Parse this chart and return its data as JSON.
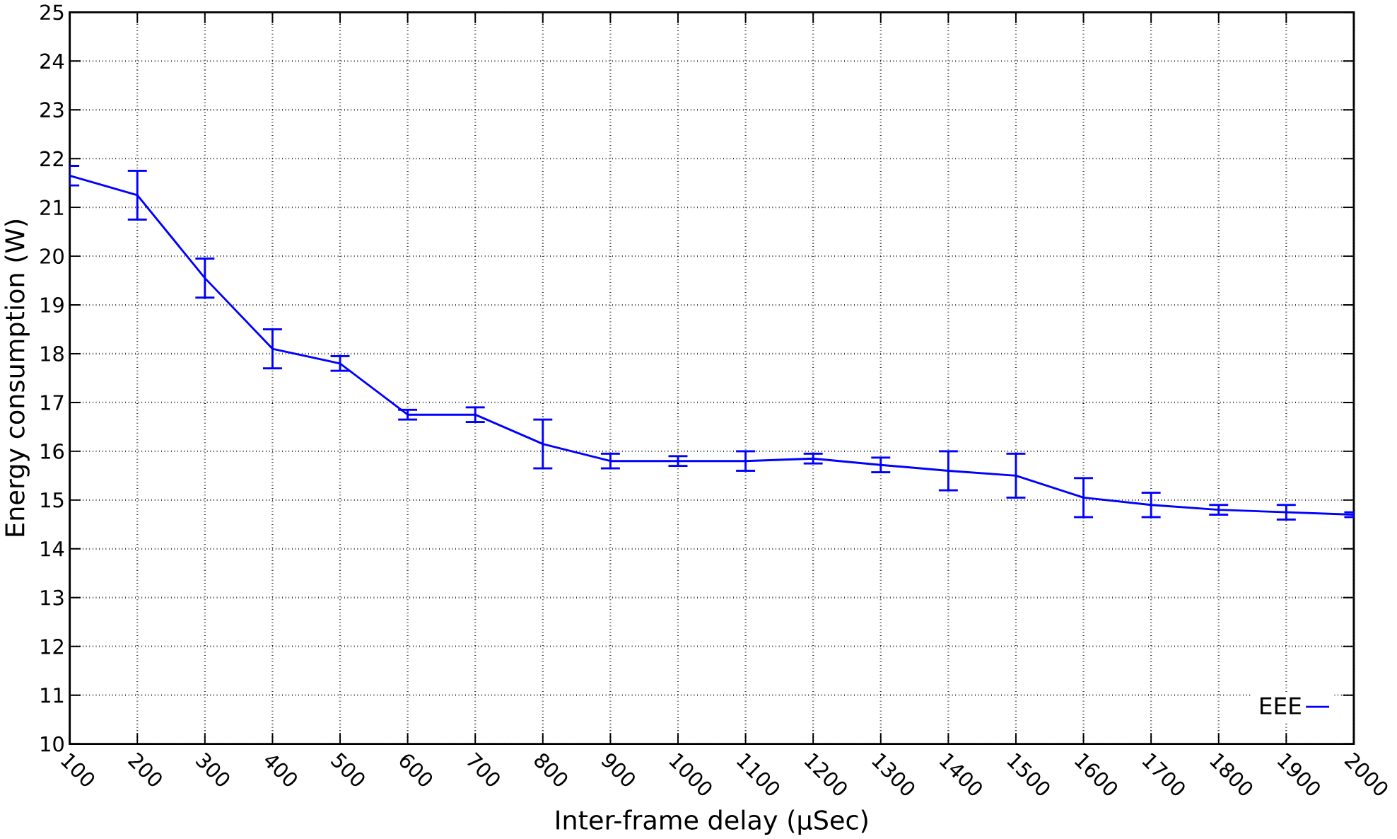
{
  "chart_data": {
    "type": "line",
    "xlabel": "Inter-frame delay (µSec)",
    "ylabel": "Energy consumption (W)",
    "x": [
      100,
      200,
      300,
      400,
      500,
      600,
      700,
      800,
      900,
      1000,
      1100,
      1200,
      1300,
      1400,
      1500,
      1600,
      1700,
      1800,
      1900,
      2000
    ],
    "series": [
      {
        "name": "EEE",
        "color": "#0000ff",
        "values": [
          21.65,
          21.25,
          19.55,
          18.1,
          17.8,
          16.75,
          16.75,
          16.15,
          15.8,
          15.8,
          15.8,
          15.85,
          15.72,
          15.6,
          15.5,
          15.05,
          14.9,
          14.8,
          14.75,
          14.7
        ],
        "errors": [
          0.2,
          0.5,
          0.4,
          0.4,
          0.15,
          0.1,
          0.15,
          0.5,
          0.15,
          0.1,
          0.2,
          0.1,
          0.15,
          0.4,
          0.45,
          0.4,
          0.25,
          0.1,
          0.15,
          0.05
        ]
      }
    ],
    "xlim": [
      100,
      2000
    ],
    "ylim": [
      10,
      25
    ],
    "xticks": [
      100,
      200,
      300,
      400,
      500,
      600,
      700,
      800,
      900,
      1000,
      1100,
      1200,
      1300,
      1400,
      1500,
      1600,
      1700,
      1800,
      1900,
      2000
    ],
    "yticks": [
      10,
      11,
      12,
      13,
      14,
      15,
      16,
      17,
      18,
      19,
      20,
      21,
      22,
      23,
      24,
      25
    ],
    "grid": true,
    "legend": "bottom right",
    "marker": "none",
    "line_style": "solid"
  }
}
